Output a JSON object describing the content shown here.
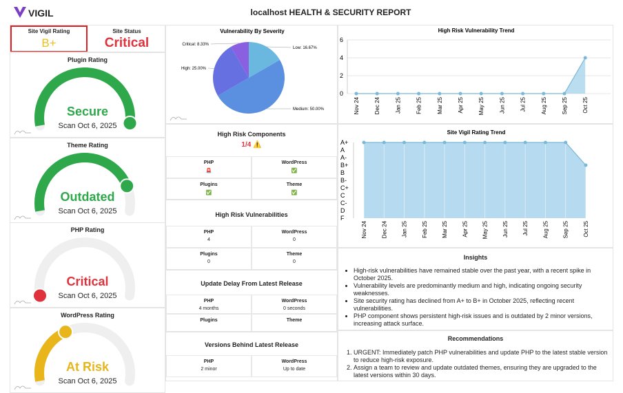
{
  "header": {
    "brand": "VIGIL",
    "title": "localhost HEALTH & SECURITY REPORT"
  },
  "summary": {
    "rating_label": "Site Vigil Rating",
    "rating": "B+",
    "status_label": "Site Status",
    "status": "Critical"
  },
  "gauges": [
    {
      "title": "Plugin Rating",
      "status": "Secure",
      "scan": "Scan Oct 6, 2025",
      "color": "#2ea84a"
    },
    {
      "title": "Theme Rating",
      "status": "Outdated",
      "scan": "Scan Oct 6, 2025",
      "color": "#2ea84a"
    },
    {
      "title": "PHP Rating",
      "status": "Critical",
      "scan": "Scan Oct 6, 2025",
      "color": "#e0323c"
    },
    {
      "title": "WordPress Rating",
      "status": "At Risk",
      "scan": "Scan Oct 6, 2025",
      "color": "#e8b51a"
    }
  ],
  "components": {
    "title": "High Risk Components",
    "summary": "1/4 ⚠️",
    "cells": [
      {
        "label": "PHP",
        "value": "🚨"
      },
      {
        "label": "WordPress",
        "value": "✅"
      },
      {
        "label": "Plugins",
        "value": "✅"
      },
      {
        "label": "Theme",
        "value": "✅"
      }
    ]
  },
  "vulnerabilities": {
    "title": "High Risk Vulnerabilities",
    "cells": [
      {
        "label": "PHP",
        "value": 4
      },
      {
        "label": "WordPress",
        "value": 0
      },
      {
        "label": "Plugins",
        "value": 0
      },
      {
        "label": "Theme",
        "value": 0
      }
    ]
  },
  "update_delay": {
    "title": "Update Delay From Latest Release",
    "cells": [
      {
        "label": "PHP",
        "value": "4 months"
      },
      {
        "label": "WordPress",
        "value": "0 seconds"
      },
      {
        "label": "Plugins"
      },
      {
        "label": "Theme"
      }
    ]
  },
  "versions_behind": {
    "title": "Versions Behind Latest Release",
    "cells": [
      {
        "label": "PHP",
        "value": "2 minor"
      },
      {
        "label": "WordPress",
        "value": "Up to date"
      }
    ]
  },
  "insights": {
    "title": "Insights",
    "items": [
      "High-risk vulnerabilities have remained stable over the past year, with a recent spike in October 2025.",
      "Vulnerability levels are predominantly medium and high, indicating ongoing security weaknesses.",
      "Site security rating has declined from A+ to B+ in October 2025, reflecting recent vulnerabilities.",
      "PHP component shows persistent high-risk issues and is outdated by 2 minor versions, increasing attack surface."
    ]
  },
  "recommendations": {
    "title": "Recommendations",
    "items": [
      "URGENT: Immediately patch PHP vulnerabilities and update PHP to the latest stable version to reduce high-risk exposure.",
      "Assign a team to review and update outdated themes, ensuring they are upgraded to the latest versions within 30 days."
    ]
  },
  "chart_data": [
    {
      "type": "pie",
      "title": "Vulnerability By Severity",
      "categories": [
        "Low",
        "Medium",
        "High",
        "Critical"
      ],
      "values": [
        16.67,
        50,
        25,
        8.33
      ],
      "value_labels": [
        "Low: 16.67%",
        "Medium: 50.00%",
        "High: 25.00%",
        "Critical: 8.33%"
      ],
      "colors": [
        "#6ab8e0",
        "#5b8fe0",
        "#6670e0",
        "#8a5fe0"
      ]
    },
    {
      "type": "area",
      "title": "High Risk Vulnerability Trend",
      "categories": [
        "Nov 24",
        "Dec 24",
        "Jan 25",
        "Feb 25",
        "Mar 25",
        "Apr 25",
        "May 25",
        "Jun 25",
        "Jul 25",
        "Aug 25",
        "Sep 25",
        "Oct 25"
      ],
      "values": [
        0,
        0,
        0,
        0,
        0,
        0,
        0,
        0,
        0,
        0,
        0,
        4
      ],
      "ylim": [
        0,
        6
      ],
      "yticks": [
        0,
        2,
        4,
        6
      ],
      "color": "#7ab8d8"
    },
    {
      "type": "ordinal-area",
      "title": "Site Vigil Rating Trend",
      "categories": [
        "Nov 24",
        "Dec 24",
        "Jan 25",
        "Feb 25",
        "Mar 25",
        "Apr 25",
        "May 25",
        "Jun 25",
        "Jul 25",
        "Aug 25",
        "Sep 25",
        "Oct 25"
      ],
      "values": [
        "A+",
        "A+",
        "A+",
        "A+",
        "A+",
        "A+",
        "A+",
        "A+",
        "A+",
        "A+",
        "A+",
        "B+"
      ],
      "ycategories": [
        "A+",
        "A",
        "A-",
        "B+",
        "B",
        "B-",
        "C+",
        "C",
        "C-",
        "D",
        "F"
      ],
      "color": "#7ab8d8"
    }
  ]
}
